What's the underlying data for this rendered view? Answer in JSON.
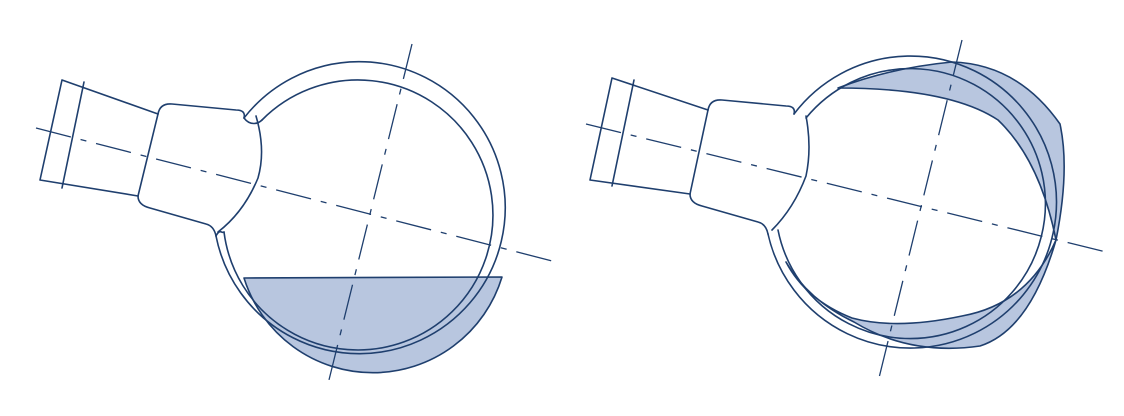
{
  "colors": {
    "line": "#1f3f6e",
    "liquid_fill": "#b8c6df",
    "background": "#ffffff"
  },
  "flasks": [
    {
      "name": "flask-at-rest",
      "liquid_state": "pooled-at-bottom"
    },
    {
      "name": "flask-rotating",
      "liquid_state": "film-on-wall"
    }
  ]
}
